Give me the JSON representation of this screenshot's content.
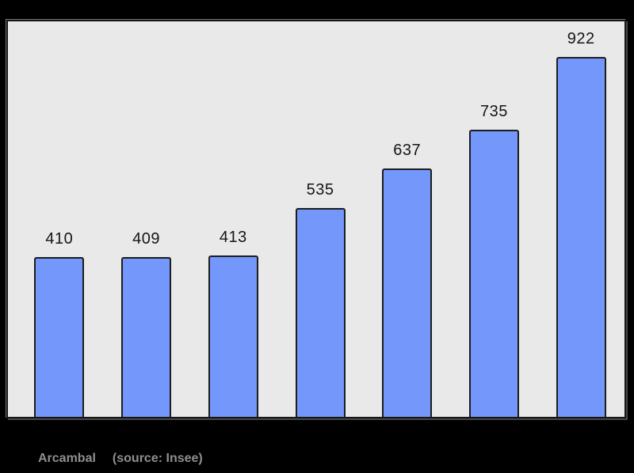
{
  "caption": {
    "commune": "Arcambal",
    "source": "(source: Insee)"
  },
  "chart_data": {
    "type": "bar",
    "values": [
      410,
      409,
      413,
      535,
      637,
      735,
      922
    ],
    "value_labels": [
      "410",
      "409",
      "413",
      "535",
      "637",
      "735",
      "922"
    ],
    "title": "",
    "xlabel": "",
    "ylabel": "",
    "ylim": [
      0,
      1020
    ],
    "grid": false,
    "legend_position": "none",
    "tick_labels": [],
    "colors": {
      "bar_fill": "#7397fa",
      "bar_border": "#1d1d1d",
      "plot_background": "#e9e9e9",
      "page_background": "#000000",
      "value_label_text": "#151515",
      "caption_text": "#8f8f8f"
    }
  }
}
